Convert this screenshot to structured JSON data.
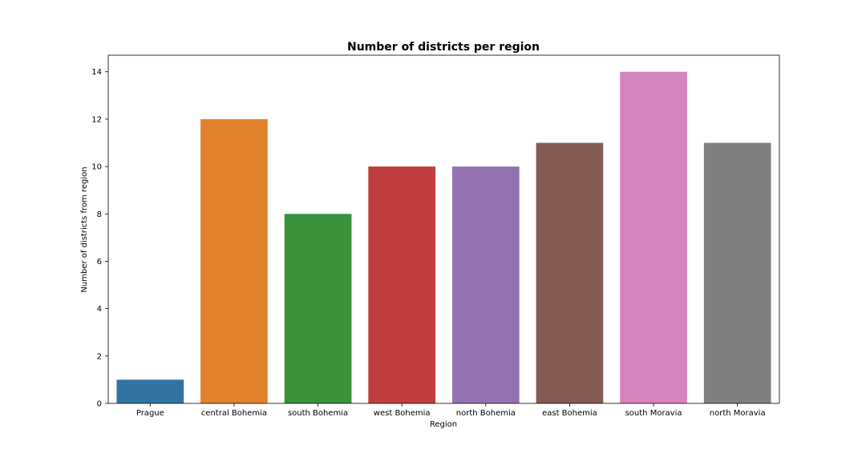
{
  "chart_data": {
    "type": "bar",
    "title": "Number of districts per region",
    "xlabel": "Region",
    "ylabel": "Number of districts from region",
    "categories": [
      "Prague",
      "central Bohemia",
      "south Bohemia",
      "west Bohemia",
      "north Bohemia",
      "east Bohemia",
      "south Moravia",
      "north Moravia"
    ],
    "values": [
      1,
      12,
      8,
      10,
      10,
      11,
      14,
      11
    ],
    "colors": [
      "#3274a1",
      "#e1812c",
      "#3a923a",
      "#c03d3e",
      "#9372b2",
      "#845b53",
      "#d684bd",
      "#7f7f7f"
    ],
    "ylim": [
      0,
      14.7
    ],
    "yticks": [
      0,
      2,
      4,
      6,
      8,
      10,
      12,
      14
    ],
    "grid": false,
    "legend": "none"
  }
}
